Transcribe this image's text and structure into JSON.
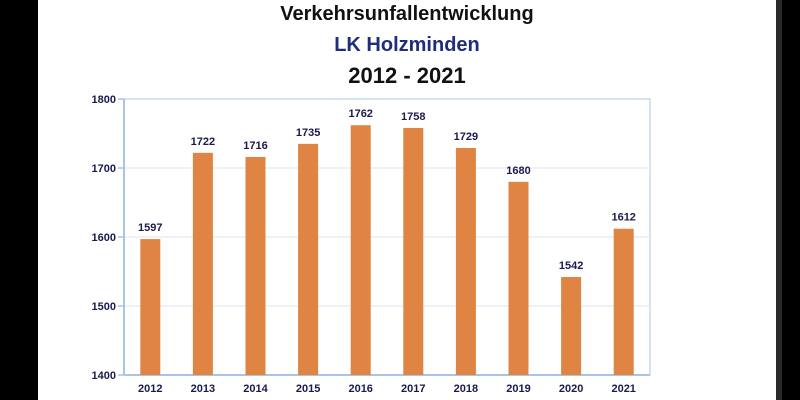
{
  "colors": {
    "bar": "#e08443",
    "axis": "#a9c4e4",
    "grid": "#dde6f2",
    "text": "#1a1a4e",
    "title_blue": "#1f2d7a"
  },
  "chart_data": {
    "type": "bar",
    "title": "Verkehrsunfallentwicklung",
    "subtitle": "LK Holzminden",
    "period": "2012 - 2021",
    "xlabel": "",
    "ylabel": "",
    "categories": [
      "2012",
      "2013",
      "2014",
      "2015",
      "2016",
      "2017",
      "2018",
      "2019",
      "2020",
      "2021"
    ],
    "values": [
      1597,
      1722,
      1716,
      1735,
      1762,
      1758,
      1729,
      1680,
      1542,
      1612
    ],
    "ylim": [
      1400,
      1800
    ],
    "yticks": [
      1400,
      1500,
      1600,
      1700,
      1800
    ],
    "grid": true,
    "legend": "none",
    "data_labels": true
  }
}
